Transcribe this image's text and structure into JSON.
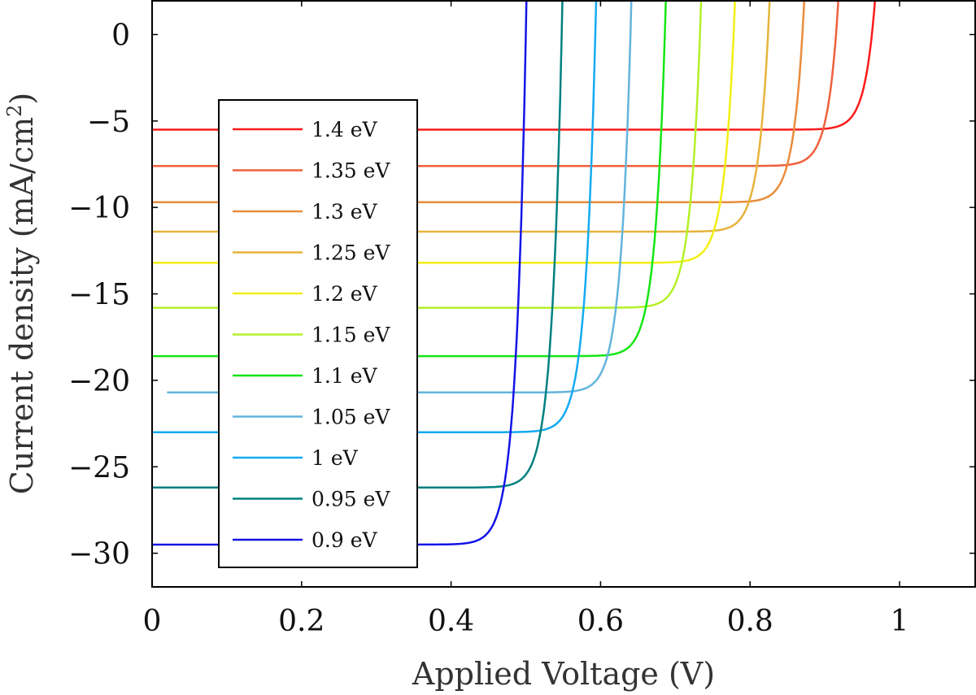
{
  "chart_data": {
    "type": "line",
    "xlabel": "Applied Voltage (V)",
    "ylabel": "Current density (mA/cm",
    "ylabel_sup": "2",
    "ylabel_close": ")",
    "xlim": [
      0,
      1.1
    ],
    "ylim": [
      -32,
      2
    ],
    "xticks": [
      0,
      0.2,
      0.4,
      0.6,
      0.8,
      1
    ],
    "xtick_labels": [
      "0",
      "0.2",
      "0.4",
      "0.6",
      "0.8",
      "1"
    ],
    "yticks": [
      0,
      -5,
      -10,
      -15,
      -20,
      -25,
      -30
    ],
    "ytick_labels": [
      "0",
      "−5",
      "−10",
      "−15",
      "−20",
      "−25",
      "−30"
    ],
    "grid": false,
    "legend_position": "left",
    "series": [
      {
        "name": "1.4 eV",
        "color": "#ff1a1a",
        "jsc": -5.5,
        "voc": 0.963,
        "vstart": 0.0
      },
      {
        "name": "1.35 eV",
        "color": "#f0603c",
        "jsc": -7.6,
        "voc": 0.915,
        "vstart": 0.0
      },
      {
        "name": "1.3 eV",
        "color": "#e98c3c",
        "jsc": -9.7,
        "voc": 0.87,
        "vstart": 0.0
      },
      {
        "name": "1.25 eV",
        "color": "#e6b43c",
        "jsc": -11.4,
        "voc": 0.824,
        "vstart": 0.0
      },
      {
        "name": "1.2 eV",
        "color": "#f2ee14",
        "jsc": -13.2,
        "voc": 0.778,
        "vstart": 0.0
      },
      {
        "name": "1.15 eV",
        "color": "#b4f028",
        "jsc": -15.8,
        "voc": 0.733,
        "vstart": 0.0
      },
      {
        "name": "1.1 eV",
        "color": "#14e614",
        "jsc": -18.6,
        "voc": 0.686,
        "vstart": 0.0
      },
      {
        "name": "1.05 eV",
        "color": "#64b4dc",
        "jsc": -20.7,
        "voc": 0.64,
        "vstart": 0.02
      },
      {
        "name": "1 eV",
        "color": "#14aaf0",
        "jsc": -23.0,
        "voc": 0.593,
        "vstart": 0.0
      },
      {
        "name": "0.95 eV",
        "color": "#008080",
        "jsc": -26.2,
        "voc": 0.548,
        "vstart": 0.0
      },
      {
        "name": "0.9 eV",
        "color": "#1414e6",
        "jsc": -29.5,
        "voc": 0.5,
        "vstart": 0.0
      }
    ]
  }
}
